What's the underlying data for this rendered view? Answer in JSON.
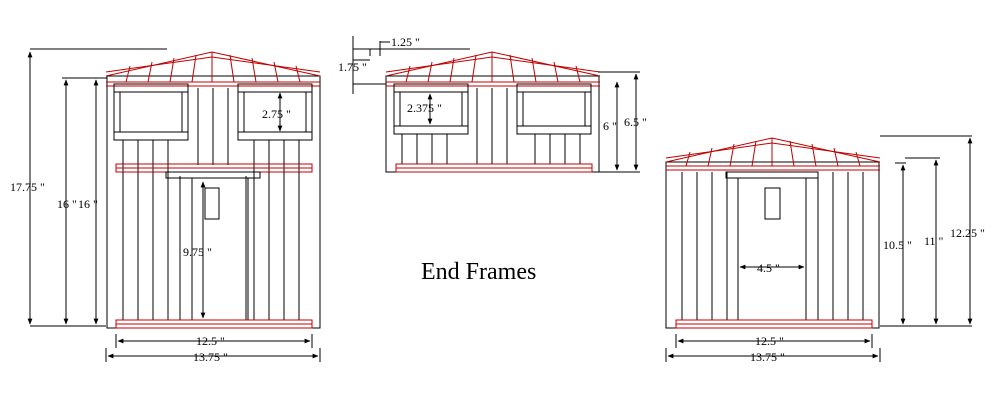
{
  "title": "End Frames",
  "dimensions": {
    "left_wall_height": "17.75 \"",
    "left_stud_height_a": "16 \"",
    "left_stud_height_b": "16 \"",
    "left_window_height": "2.75 \"",
    "left_door_height": "9.75 \"",
    "left_inner_width": "12.5 \"",
    "left_outer_width": "13.75 \"",
    "top_roof_offset": "1.25 \"",
    "top_roof_rise": "1.75 \"",
    "top_window_height": "2.375 \"",
    "top_wall_height_a": "6 \"",
    "top_wall_height_b": "6.5 \"",
    "right_door_width": "4.5 \"",
    "right_height_a": "10.5 \"",
    "right_height_b": "11 \"",
    "right_height_c": "12.25 \"",
    "right_inner_width": "12.5 \"",
    "right_outer_width": "13.75 \""
  },
  "colors": {
    "outline": "#000000",
    "framing": "#c00000"
  }
}
